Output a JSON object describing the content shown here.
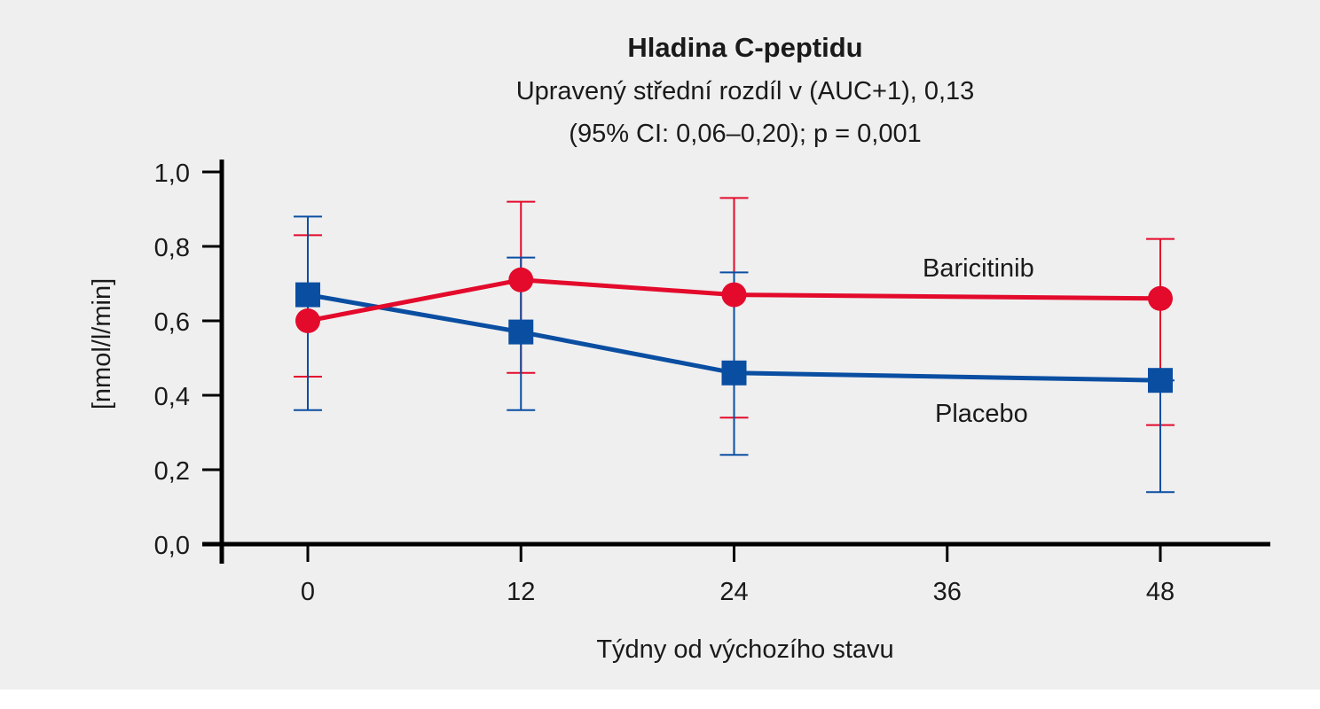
{
  "chart_data": {
    "type": "line",
    "title": "Hladina C-peptidu",
    "subtitle_lines": [
      "Upravený střední rozdíl v (AUC+1), 0,13",
      "(95% CI: 0,06–0,20); p = 0,001"
    ],
    "xlabel": "Týdny od výchozího stavu",
    "ylabel": "[nmol/l/min]",
    "xlim": [
      -4,
      54
    ],
    "ylim": [
      0,
      1
    ],
    "x_ticks": [
      0,
      12,
      24,
      36,
      48
    ],
    "x_tick_labels": [
      "0",
      "12",
      "24",
      "36",
      "48"
    ],
    "y_ticks": [
      0,
      0.2,
      0.4,
      0.6,
      0.8,
      1.0
    ],
    "y_tick_labels": [
      "0,0",
      "0,2",
      "0,4",
      "0,6",
      "0,8",
      "1,0"
    ],
    "grid": false,
    "legend": "inline labels",
    "series": [
      {
        "name": "Baricitinib",
        "color": "#e30a2b",
        "marker": "circle",
        "x": [
          0,
          12,
          24,
          48
        ],
        "y": [
          0.6,
          0.71,
          0.67,
          0.66
        ],
        "err_low": [
          0.45,
          0.46,
          0.34,
          0.32
        ],
        "err_high": [
          0.83,
          0.92,
          0.93,
          0.82
        ]
      },
      {
        "name": "Placebo",
        "color": "#0a4ea2",
        "marker": "square",
        "x": [
          0,
          12,
          24,
          48
        ],
        "y": [
          0.67,
          0.57,
          0.46,
          0.44
        ],
        "err_low": [
          0.36,
          0.36,
          0.24,
          0.14
        ],
        "err_high": [
          0.88,
          0.77,
          0.73,
          0.44
        ]
      }
    ]
  }
}
